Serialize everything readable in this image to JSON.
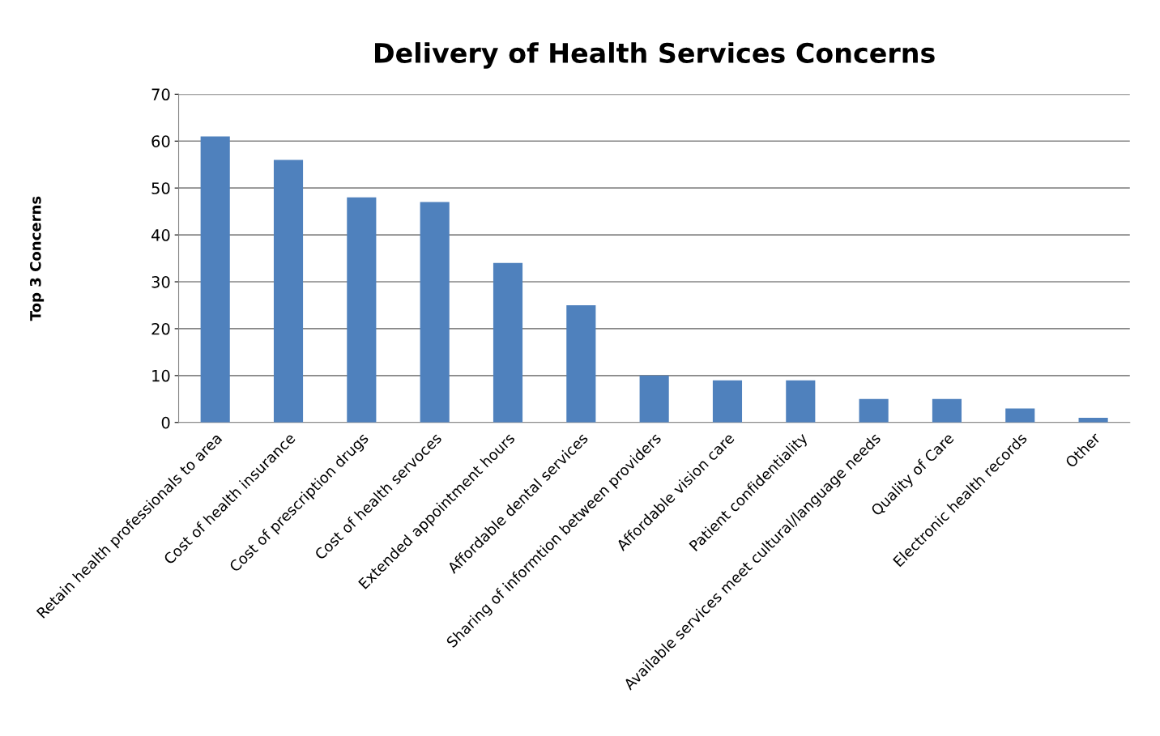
{
  "chart_data": {
    "type": "bar",
    "title": "Delivery of Health Services Concerns",
    "ylabel": "Top 3 Concerns",
    "categories": [
      "Retain health professionals to area",
      "Cost of health insurance",
      "Cost of prescription drugs",
      "Cost of health servoces",
      "Extended appointment hours",
      "Affordable dental services",
      "Sharing of informtion between providers",
      "Affordable vision care",
      "Patient confidentiality",
      "Available services meet cultural/language needs",
      "Quality of Care",
      "Electronic health records",
      "Other"
    ],
    "values": [
      61,
      56,
      48,
      47,
      34,
      25,
      10,
      9,
      9,
      5,
      5,
      3,
      1
    ],
    "color": "#4f81bd",
    "ylim": [
      0,
      70
    ],
    "yticks": [
      0,
      10,
      20,
      30,
      40,
      50,
      60,
      70
    ],
    "grid": "y",
    "legend": false
  }
}
